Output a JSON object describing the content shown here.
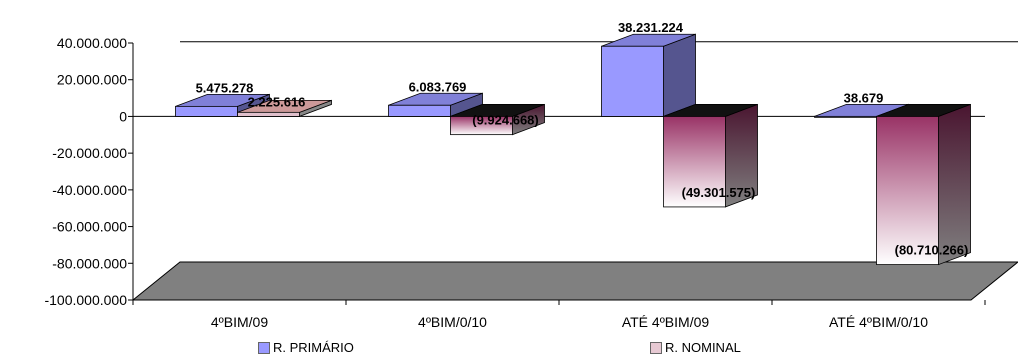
{
  "colors": {
    "primario": "#9999ff",
    "nominal": "#993366",
    "floor": "#808080"
  },
  "chart_data": {
    "type": "bar",
    "categories": [
      "4ºBIM/09",
      "4ºBIM/0/10",
      "ATÉ 4ºBIM/09",
      "ATÉ 4ºBIM/0/10"
    ],
    "series": [
      {
        "name": "R. PRIMÁRIO",
        "values": [
          5475278,
          6083769,
          38231224,
          38679
        ],
        "labels": [
          "5.475.278",
          "6.083.769",
          "38.231.224",
          "38.679"
        ]
      },
      {
        "name": "R. NOMINAL",
        "values": [
          2225616,
          -9924668,
          -49301575,
          -80710266
        ],
        "labels": [
          "2.225.616",
          "(9.924.668)",
          "(49.301.575)",
          "(80.710.266)"
        ]
      }
    ],
    "ylim": [
      -100000000,
      40000000
    ],
    "yticks": [
      "40.000.000",
      "20.000.000",
      "0",
      "-20.000.000",
      "-40.000.000",
      "-60.000.000",
      "-80.000.000",
      "-100.000.000"
    ],
    "ytick_values": [
      40000000,
      20000000,
      0,
      -20000000,
      -40000000,
      -60000000,
      -80000000,
      -100000000
    ],
    "grid": true,
    "legend": "bottom",
    "three_d": true
  }
}
